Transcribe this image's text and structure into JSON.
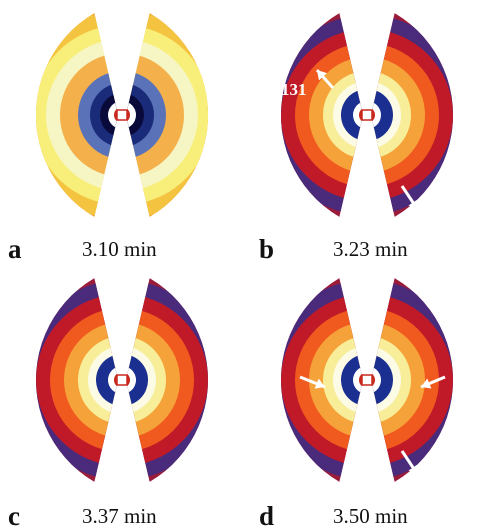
{
  "panels": [
    {
      "label": "a",
      "time": "3.10 min",
      "pattern": "early",
      "ring_colors": [
        "#f1a028",
        "#f4c441",
        "#f8ef7a",
        "#f6f6c4",
        "#f4b04a",
        "#5a73b8",
        "#1a2b7a",
        "#0a0a3a",
        "#ffffff",
        "#c8281e"
      ]
    },
    {
      "label": "b",
      "time": "3.23 min",
      "pattern": "wave",
      "annotation": "131",
      "ring_colors": [
        "#9a1c3a",
        "#4a2a7a",
        "#c01a28",
        "#f05a1e",
        "#f6a23a",
        "#f8ee9a",
        "#fbfbe6",
        "#1a2f90",
        "#ffffff",
        "#c8281e"
      ]
    },
    {
      "label": "c",
      "time": "3.37 min",
      "pattern": "wave",
      "ring_colors": [
        "#9a1c3a",
        "#4a2a7a",
        "#c01a28",
        "#f05a1e",
        "#f6a23a",
        "#f8ee9a",
        "#fbfbe6",
        "#1a2f90",
        "#ffffff",
        "#c8281e"
      ]
    },
    {
      "label": "d",
      "time": "3.50 min",
      "pattern": "wave",
      "ring_colors": [
        "#9a1c3a",
        "#4a2a7a",
        "#c01a28",
        "#f05a1e",
        "#f6a23a",
        "#f8ee9a",
        "#fbfbe6",
        "#1a2f90",
        "#ffffff",
        "#c8281e"
      ]
    }
  ]
}
